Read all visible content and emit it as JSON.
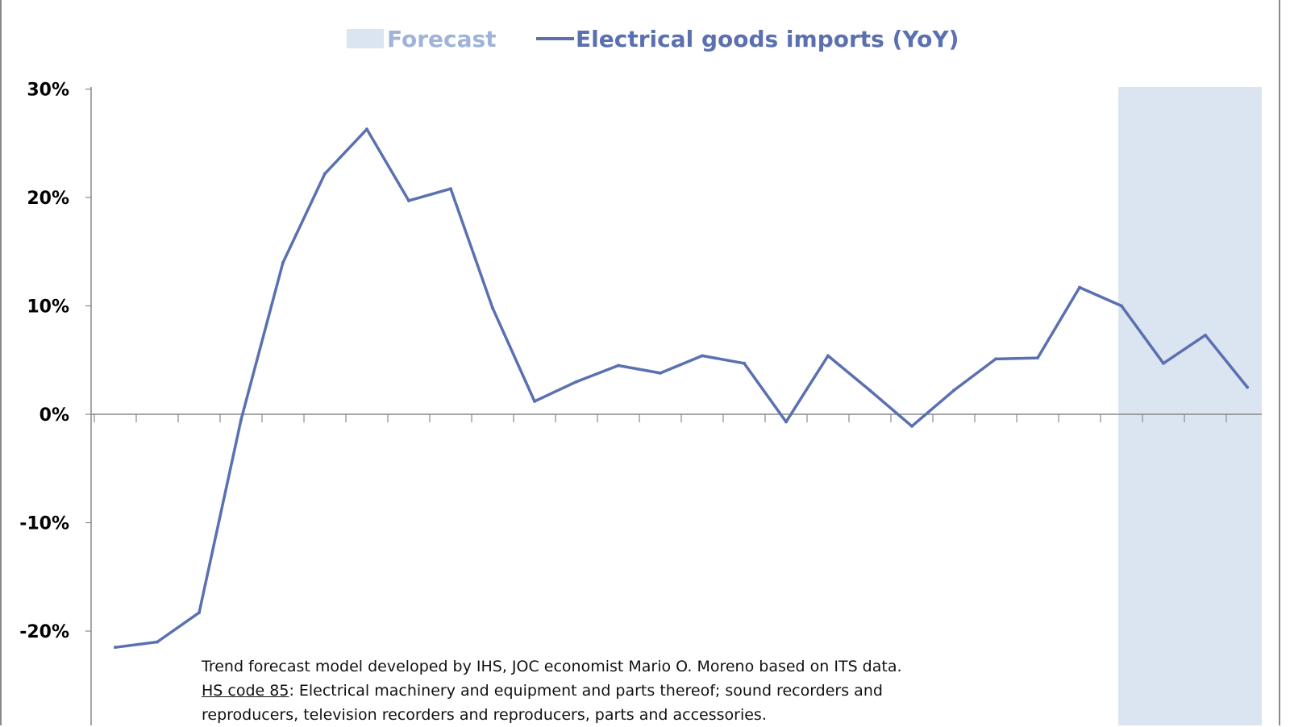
{
  "colors": {
    "forecast_fill": "#dbe5f1",
    "line": "#5a70b0",
    "legend_text": "#5a70b0",
    "forecast_legend_text": "#9fb4d8",
    "axis": "#888888"
  },
  "chart_data": {
    "type": "line",
    "title": "",
    "xlabel": "",
    "ylabel": "",
    "ylim": [
      -30,
      30
    ],
    "y_ticks": [
      30,
      20,
      10,
      0,
      -10,
      -20
    ],
    "y_tick_labels": [
      "30%",
      "20%",
      "10%",
      "0%",
      "-10%",
      "-20%"
    ],
    "legend": {
      "placement": "top-center",
      "items": [
        {
          "label": "Forecast",
          "kind": "area"
        },
        {
          "label": "Electrical goods imports (YoY)",
          "kind": "line"
        }
      ]
    },
    "forecast_region": {
      "from_index": 24,
      "to_index": 27
    },
    "series": [
      {
        "name": "Electrical goods imports (YoY)",
        "values": [
          -21.5,
          -21.0,
          -18.3,
          -0.5,
          14.0,
          22.2,
          26.3,
          19.7,
          20.8,
          9.8,
          1.2,
          3.0,
          4.5,
          3.8,
          5.4,
          4.7,
          -0.7,
          5.4,
          2.2,
          -1.1,
          2.2,
          5.1,
          5.2,
          11.7,
          10.0,
          4.7,
          7.3,
          2.5
        ]
      }
    ],
    "grid": false
  },
  "footnote": {
    "line1": "Trend forecast model developed by IHS, JOC economist Mario O. Moreno based on ITS data.",
    "hs_code": "HS code 85",
    "line2_rest": ": Electrical machinery and equipment and parts thereof; sound recorders and",
    "line3": "reproducers, television recorders and reproducers, parts and accessories."
  }
}
